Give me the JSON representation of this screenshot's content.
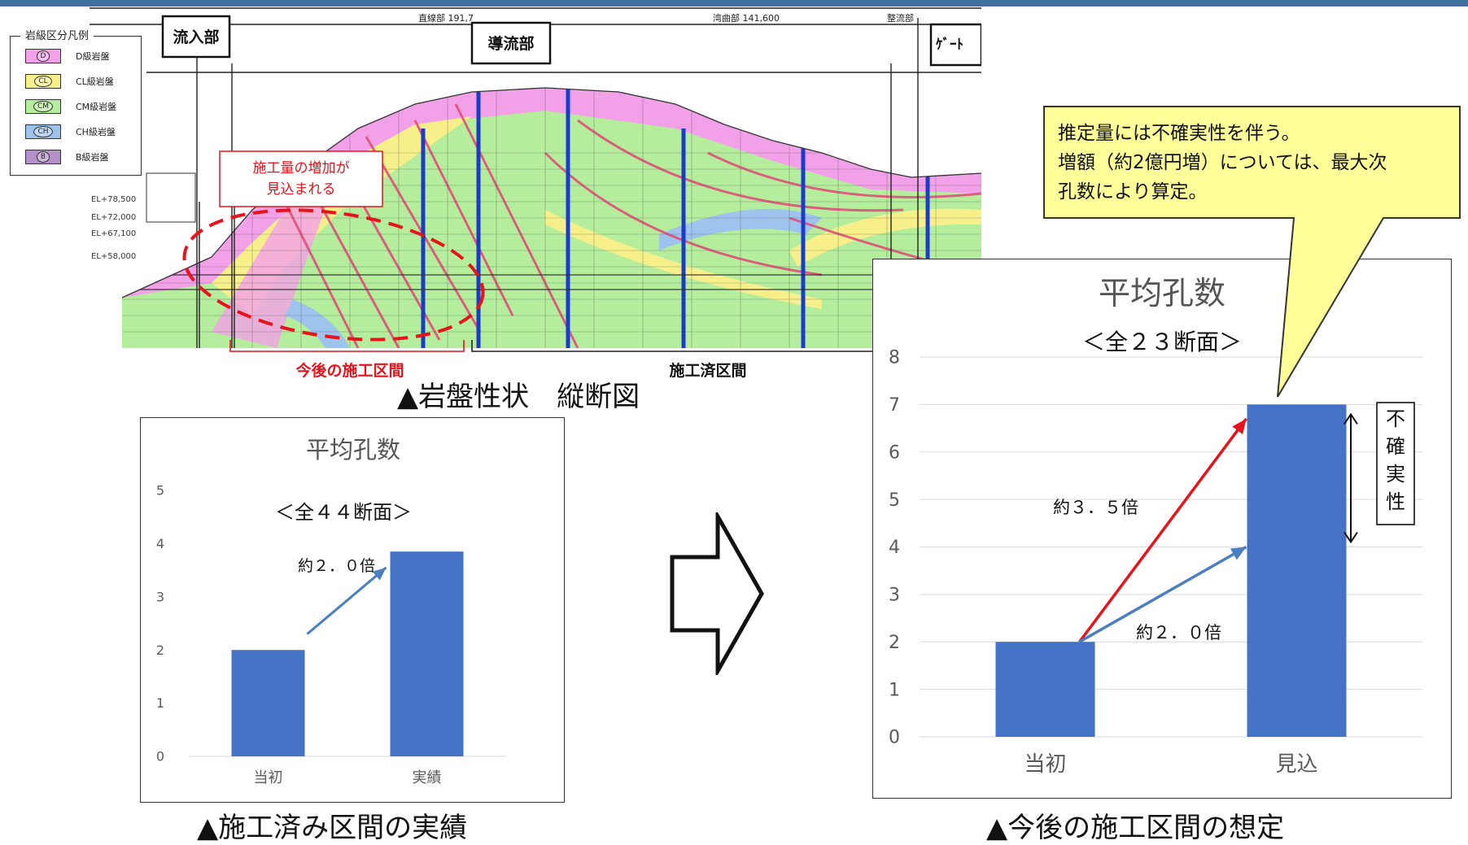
{
  "legend": {
    "title": "岩級区分凡例",
    "items": [
      {
        "code": "D",
        "label": "D級岩盤",
        "color": "#f2a0e8"
      },
      {
        "code": "CL",
        "label": "CL級岩盤",
        "color": "#f7f08a"
      },
      {
        "code": "CM",
        "label": "CM級岩盤",
        "color": "#b4ee9c"
      },
      {
        "code": "CH",
        "label": "CH級岩盤",
        "color": "#9ec4ee"
      },
      {
        "code": "B",
        "label": "B級岩盤",
        "color": "#b48fc8"
      }
    ]
  },
  "section": {
    "label_inflow": "流入部",
    "label_guide": "導流部",
    "label_gate": "ｹﾞｰﾄ",
    "label_straight": "直線部 191,7",
    "label_curve": "湾曲部 141,600",
    "label_flow": "整流部",
    "label_future": "今後の施工区間",
    "label_done": "施工済区間",
    "increase_note": "施工量の増加が見込まれる",
    "caption": "▲岩盤性状　縦断図",
    "elevations": [
      "EL+78,500",
      "EL+72,000",
      "EL+67,100",
      "EL+58,000"
    ]
  },
  "arrow_label": "⇨",
  "colors": {
    "bar": "#4472c4",
    "arrow_blue": "#4a7ec2",
    "arrow_red": "#e8121a",
    "callout_fill": "#ffff99",
    "grid": "#d9d9d9",
    "axis_text": "#595959",
    "top_bar": "#3f6f9f"
  },
  "chart_data": [
    {
      "type": "bar",
      "title": "平均孔数",
      "subtitle": "＜全４４断面＞",
      "categories": [
        "当初",
        "実績"
      ],
      "values": [
        2.0,
        3.85
      ],
      "ylim": [
        0,
        5
      ],
      "yticks": [
        0,
        1,
        2,
        3,
        4,
        5
      ],
      "grid": false,
      "annotations": [
        {
          "text": "約２．０倍",
          "arrow": "blue"
        }
      ],
      "caption": "▲施工済み区間の実績"
    },
    {
      "type": "bar",
      "title": "平均孔数",
      "subtitle": "＜全２３断面＞",
      "categories": [
        "当初",
        "見込"
      ],
      "values": [
        2.0,
        7.0
      ],
      "ylim": [
        0,
        8
      ],
      "yticks": [
        0,
        1,
        2,
        3,
        4,
        5,
        6,
        7,
        8
      ],
      "grid": true,
      "annotations": [
        {
          "text": "約３．５倍",
          "arrow": "red",
          "to_value": 7.0
        },
        {
          "text": "約２．０倍",
          "arrow": "blue",
          "to_value": 4.0
        }
      ],
      "uncertainty_label": "不確実性",
      "uncertainty_range": [
        4.0,
        7.0
      ],
      "callout": "推定量には不確実性を伴う。増額（約2億円増）については、最大次孔数により算定。",
      "caption": "▲今後の施工区間の想定"
    }
  ]
}
